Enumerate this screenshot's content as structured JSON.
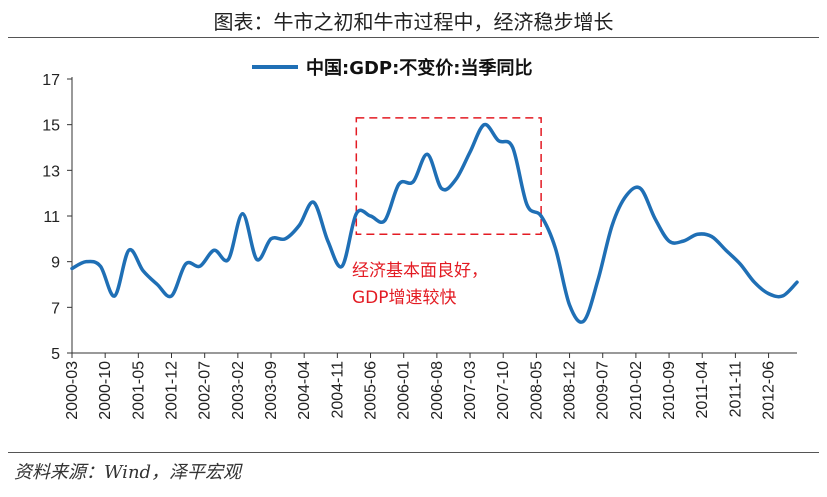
{
  "page_title": "图表：牛市之初和牛市过程中，经济稳步增长",
  "source": "资料来源：Wind，泽平宏观",
  "chart_data": {
    "type": "line",
    "title": "",
    "xlabel": "",
    "ylabel": "",
    "ylim": [
      5,
      17
    ],
    "yticks": [
      5,
      7,
      9,
      11,
      13,
      15,
      17
    ],
    "x_tick_labels": [
      "2000-03",
      "2000-10",
      "2001-05",
      "2001-12",
      "2002-07",
      "2003-02",
      "2003-09",
      "2004-04",
      "2004-11",
      "2005-06",
      "2006-01",
      "2006-08",
      "2007-03",
      "2007-10",
      "2008-05",
      "2008-12",
      "2009-07",
      "2010-02",
      "2010-09",
      "2011-04",
      "2011-11",
      "2012-06"
    ],
    "legend": {
      "placement": "top-center"
    },
    "series": [
      {
        "name": "中国:GDP:不变价:当季同比",
        "color": "#1f6fb5",
        "x": [
          "2000-03",
          "2000-06",
          "2000-09",
          "2000-12",
          "2001-03",
          "2001-06",
          "2001-09",
          "2001-12",
          "2002-03",
          "2002-06",
          "2002-09",
          "2002-12",
          "2003-03",
          "2003-06",
          "2003-09",
          "2003-12",
          "2004-03",
          "2004-06",
          "2004-09",
          "2004-12",
          "2005-03",
          "2005-06",
          "2005-09",
          "2005-12",
          "2006-03",
          "2006-06",
          "2006-09",
          "2006-12",
          "2007-03",
          "2007-06",
          "2007-09",
          "2007-12",
          "2008-03",
          "2008-06",
          "2008-09",
          "2008-12",
          "2009-03",
          "2009-06",
          "2009-09",
          "2009-12",
          "2010-03",
          "2010-06",
          "2010-09",
          "2010-12",
          "2011-03",
          "2011-06",
          "2011-09",
          "2011-12",
          "2012-03",
          "2012-06",
          "2012-09",
          "2012-12"
        ],
        "values": [
          8.7,
          9.0,
          8.8,
          7.5,
          9.5,
          8.6,
          8.0,
          7.5,
          8.9,
          8.8,
          9.5,
          9.1,
          11.1,
          9.1,
          10.0,
          10.0,
          10.6,
          11.6,
          9.9,
          8.8,
          11.1,
          11.0,
          10.8,
          12.4,
          12.5,
          13.7,
          12.2,
          12.6,
          13.8,
          15.0,
          14.3,
          14.0,
          11.5,
          11.0,
          9.6,
          7.1,
          6.4,
          8.2,
          10.6,
          11.9,
          12.2,
          10.9,
          9.9,
          9.9,
          10.2,
          10.1,
          9.5,
          8.9,
          8.1,
          7.6,
          7.5,
          8.1
        ]
      }
    ],
    "annotations": [
      {
        "text_lines": [
          "经济基本面良好，",
          "GDP增速较快"
        ],
        "color": "#e31b23",
        "highlight_x_range": [
          "2005-03",
          "2008-06"
        ],
        "highlight_y_range": [
          10.2,
          15.3
        ]
      }
    ]
  }
}
